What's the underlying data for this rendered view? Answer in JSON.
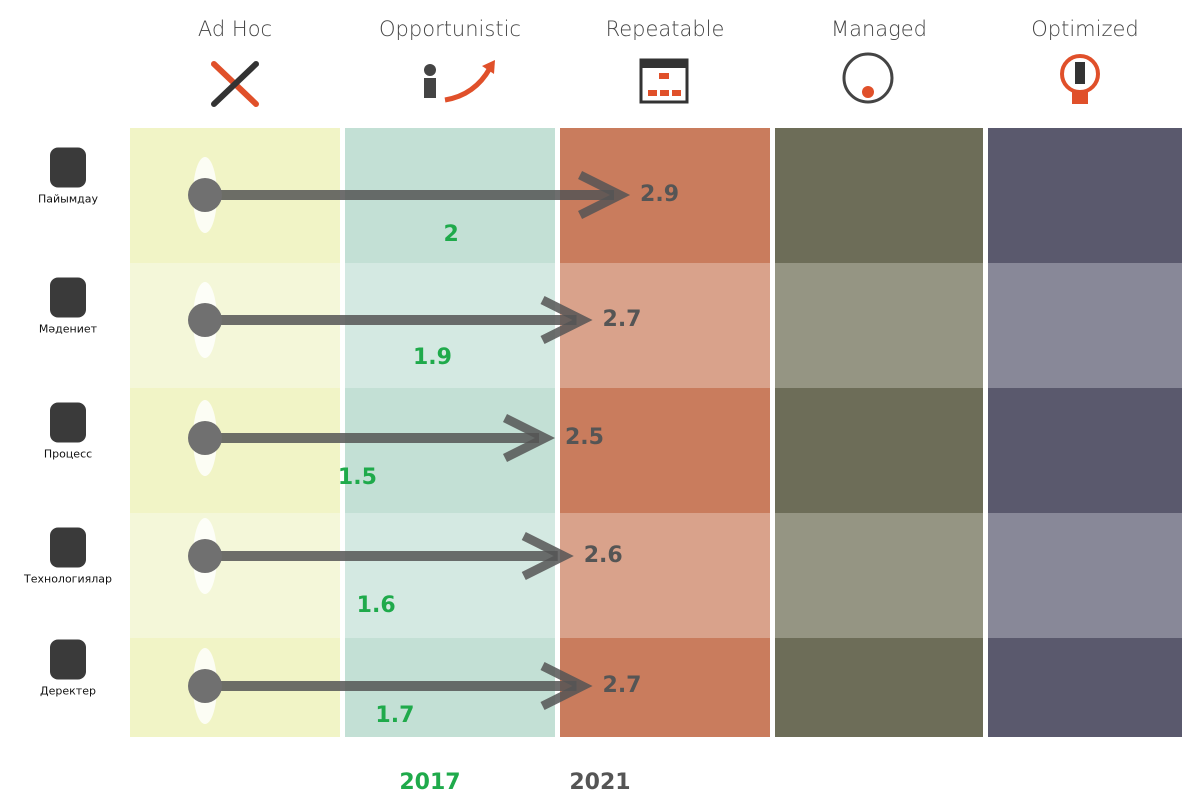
{
  "chart_data": {
    "type": "maturity",
    "columns": [
      "Ad Hoc",
      "Opportunistic",
      "Repeatable",
      "Managed",
      "Optimized"
    ],
    "categories": [
      "Пайымдау",
      "Мәдениет",
      "Процесс",
      "Технологиялар",
      "Деректер"
    ],
    "series": [
      {
        "name": "2017",
        "color": "#1faa4b",
        "values": [
          2.0,
          1.9,
          1.5,
          1.6,
          1.7
        ]
      },
      {
        "name": "2021",
        "color": "#555555",
        "values": [
          2.9,
          2.7,
          2.5,
          2.6,
          2.7
        ]
      }
    ],
    "xlim": [
      0,
      5
    ]
  }
}
